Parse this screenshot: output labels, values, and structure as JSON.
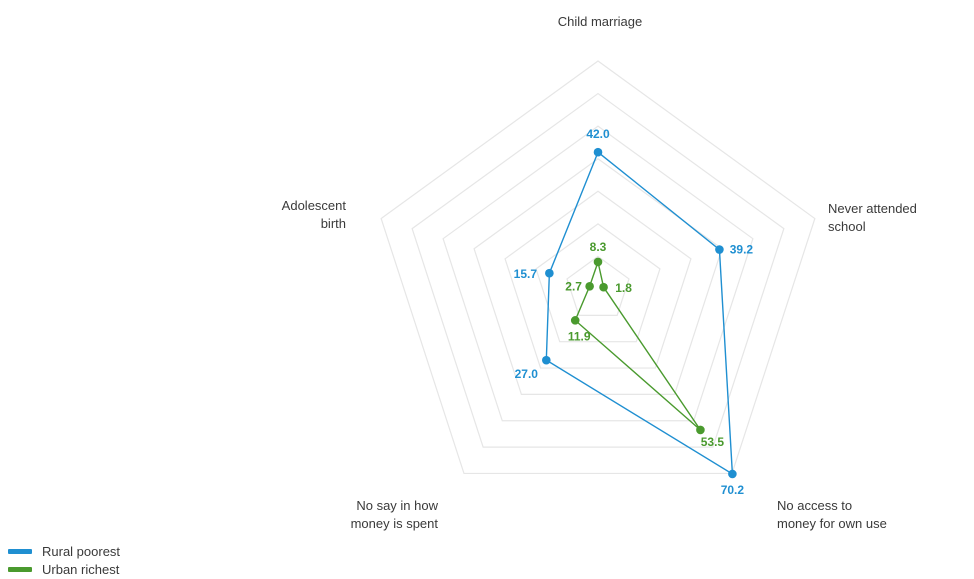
{
  "chart_data": {
    "type": "radar",
    "axes": [
      {
        "label": [
          "Child marriage"
        ]
      },
      {
        "label": [
          "Never attended",
          "school"
        ]
      },
      {
        "label": [
          "No access to",
          "money for own use"
        ]
      },
      {
        "label": [
          "No say in how",
          "money is spent"
        ]
      },
      {
        "label": [
          "Adolescent",
          "birth"
        ]
      }
    ],
    "rings": 7,
    "max": 70,
    "series": [
      {
        "name": "Rural poorest",
        "color": "#1f8fd1",
        "values": [
          42.0,
          39.2,
          70.2,
          27.0,
          15.7
        ],
        "labels": [
          "42.0",
          "39.2",
          "70.2",
          "27.0",
          "15.7"
        ]
      },
      {
        "name": "Urban richest",
        "color": "#4a9a2e",
        "values": [
          8.3,
          1.8,
          53.5,
          11.9,
          2.7
        ],
        "labels": [
          "8.3",
          "1.8",
          "53.5",
          "11.9",
          "2.7"
        ]
      }
    ],
    "legend": {
      "position": "bottom-left"
    }
  }
}
